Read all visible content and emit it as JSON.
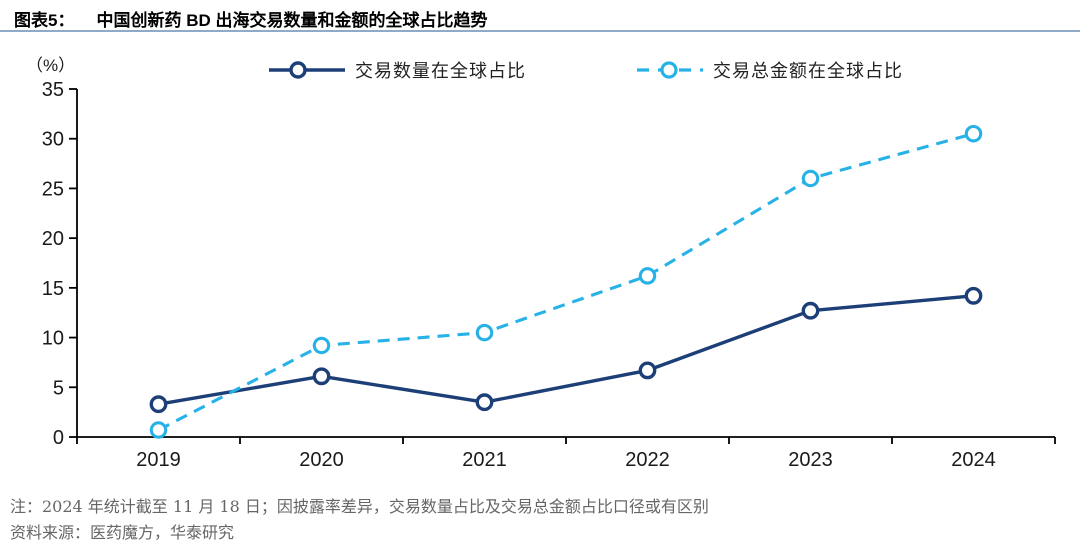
{
  "figure": {
    "label": "图表5：",
    "title": "中国创新药 BD 出海交易数量和金额的全球占比趋势"
  },
  "chart_data": {
    "type": "line",
    "unit_label": "（%）",
    "categories": [
      "2019",
      "2020",
      "2021",
      "2022",
      "2023",
      "2024"
    ],
    "series": [
      {
        "name": "交易数量在全球占比",
        "values": [
          3.3,
          6.1,
          3.5,
          6.7,
          12.7,
          14.2
        ],
        "color": "#1d3f78",
        "line_style": "solid",
        "marker": "circle"
      },
      {
        "name": "交易总金额在全球占比",
        "values": [
          0.7,
          9.2,
          10.5,
          16.2,
          26.0,
          30.5
        ],
        "color": "#27b2e7",
        "line_style": "dashed",
        "marker": "circle"
      }
    ],
    "ylim": [
      0,
      35
    ],
    "yticks": [
      0,
      5,
      10,
      15,
      20,
      25,
      30,
      35
    ],
    "legend_position": "top-center",
    "grid": false
  },
  "footnotes": {
    "note": "注：2024 年统计截至 11 月 18 日；因披露率差异，交易数量占比及交易总金额占比口径或有区别",
    "source": "资料来源：医药魔方，华泰研究"
  },
  "colors": {
    "title_text": "#000000",
    "title_underline": "#8fa9c8",
    "axis": "#000000",
    "tick_label": "#1a1a1a",
    "note_text": "#666666"
  }
}
